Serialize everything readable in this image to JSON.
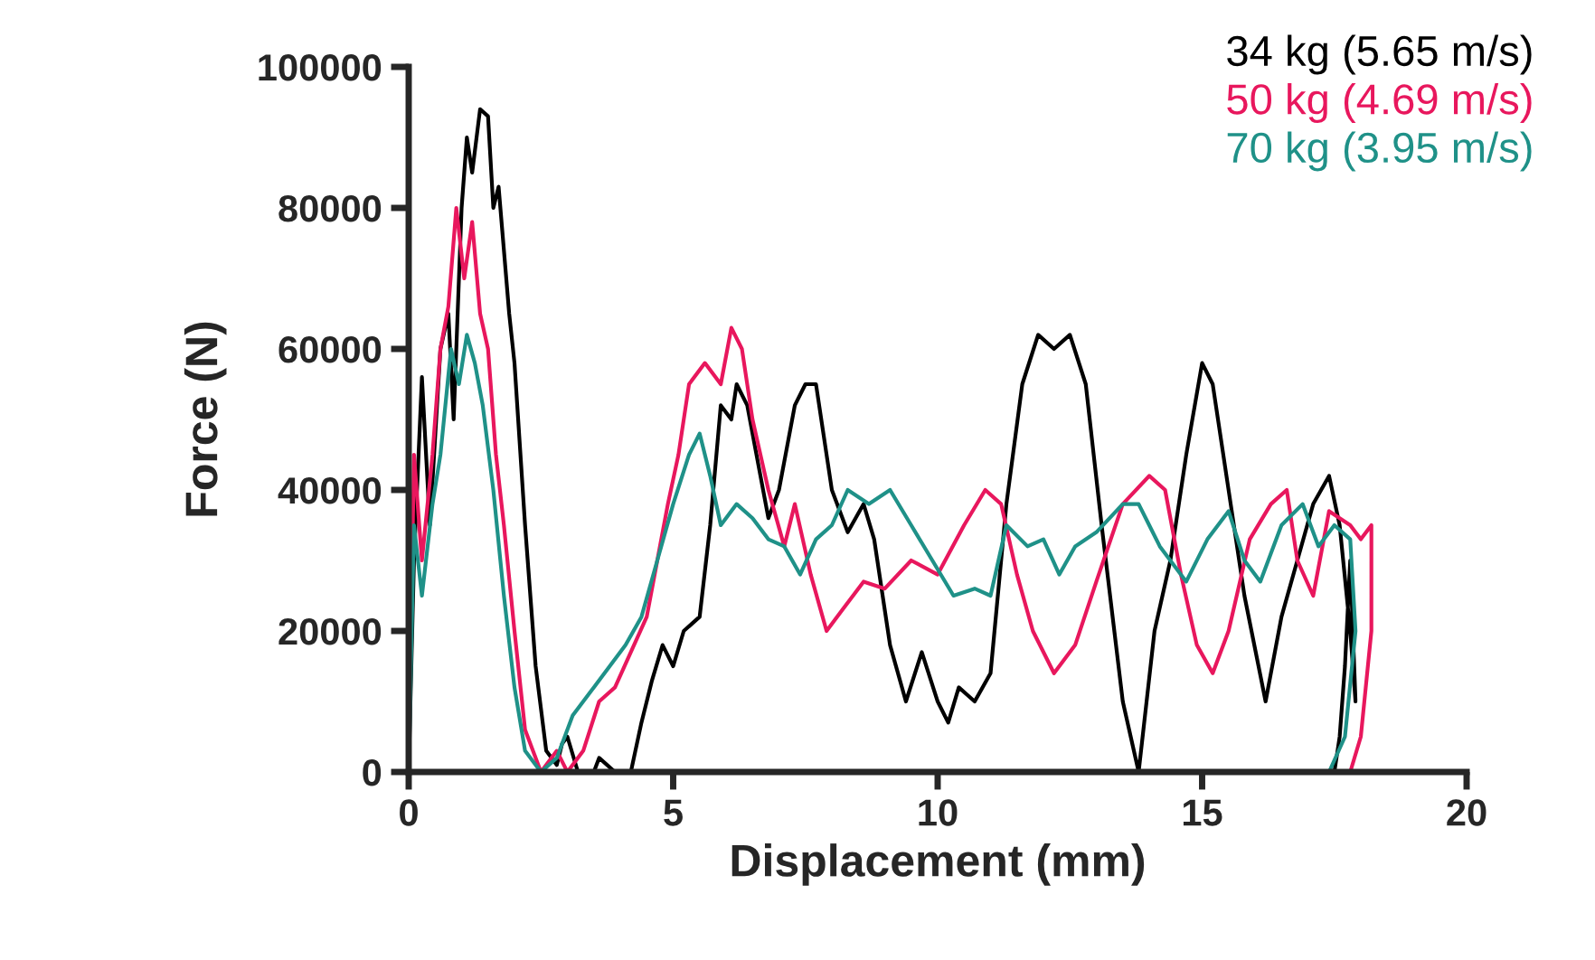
{
  "chart_data": {
    "type": "line",
    "xlabel": "Displacement (mm)",
    "ylabel": "Force (N)",
    "xlim": [
      0,
      20
    ],
    "ylim": [
      0,
      100000
    ],
    "xticks": [
      0,
      5,
      10,
      15,
      20
    ],
    "yticks": [
      0,
      20000,
      40000,
      60000,
      80000,
      100000
    ],
    "grid": false,
    "legend": "top right",
    "marker": "none",
    "line_style": "solid",
    "series": [
      {
        "name": "34 kg (5.65 m/s)",
        "color": "#000000",
        "x": [
          0,
          0.1,
          0.25,
          0.4,
          0.6,
          0.75,
          0.85,
          1.0,
          1.1,
          1.2,
          1.35,
          1.5,
          1.6,
          1.7,
          1.9,
          2.0,
          2.2,
          2.4,
          2.6,
          2.8,
          2.9,
          3.0,
          3.2,
          3.5,
          3.6,
          3.9,
          4.2,
          4.4,
          4.6,
          4.8,
          5.0,
          5.2,
          5.5,
          5.7,
          5.9,
          6.1,
          6.2,
          6.4,
          6.6,
          6.8,
          7.0,
          7.3,
          7.5,
          7.7,
          8.0,
          8.3,
          8.6,
          8.8,
          9.1,
          9.4,
          9.7,
          10.0,
          10.2,
          10.4,
          10.7,
          11.0,
          11.3,
          11.6,
          11.9,
          12.2,
          12.5,
          12.8,
          13.1,
          13.5,
          13.8,
          14.1,
          14.4,
          14.7,
          15.0,
          15.2,
          15.5,
          15.8,
          16.2,
          16.5,
          16.8,
          17.1,
          17.4,
          17.6,
          17.8,
          17.9,
          17.8,
          17.7,
          17.6,
          17.5
        ],
        "values": [
          0,
          30000,
          56000,
          35000,
          60000,
          65000,
          50000,
          80000,
          90000,
          85000,
          94000,
          93000,
          80000,
          83000,
          65000,
          58000,
          35000,
          15000,
          3000,
          1000,
          4000,
          5000,
          0,
          0,
          2000,
          0,
          0,
          7000,
          13000,
          18000,
          15000,
          20000,
          22000,
          35000,
          52000,
          50000,
          55000,
          52000,
          44000,
          36000,
          40000,
          52000,
          55000,
          55000,
          40000,
          34000,
          38000,
          33000,
          18000,
          10000,
          17000,
          10000,
          7000,
          12000,
          10000,
          14000,
          38000,
          55000,
          62000,
          60000,
          62000,
          55000,
          35000,
          10000,
          0,
          20000,
          30000,
          45000,
          58000,
          55000,
          40000,
          25000,
          10000,
          22000,
          30000,
          38000,
          42000,
          35000,
          20000,
          10000,
          30000,
          15000,
          5000,
          0
        ]
      },
      {
        "name": "50 kg (4.69 m/s)",
        "color": "#e8175d",
        "x": [
          0,
          0.1,
          0.25,
          0.45,
          0.6,
          0.75,
          0.9,
          1.05,
          1.2,
          1.35,
          1.5,
          1.65,
          1.8,
          2.0,
          2.2,
          2.5,
          2.8,
          3.0,
          3.3,
          3.6,
          3.9,
          4.2,
          4.5,
          4.7,
          4.9,
          5.1,
          5.3,
          5.6,
          5.9,
          6.1,
          6.3,
          6.5,
          6.8,
          7.1,
          7.3,
          7.6,
          7.9,
          8.2,
          8.6,
          9.0,
          9.5,
          10.0,
          10.5,
          10.9,
          11.2,
          11.5,
          11.8,
          12.2,
          12.6,
          13.0,
          13.5,
          14.0,
          14.3,
          14.6,
          14.9,
          15.2,
          15.5,
          15.9,
          16.3,
          16.6,
          16.8,
          17.1,
          17.4,
          17.8,
          18.0,
          18.2,
          18.2,
          18.0,
          17.8
        ],
        "values": [
          0,
          45000,
          30000,
          45000,
          60000,
          66000,
          80000,
          70000,
          78000,
          65000,
          60000,
          45000,
          35000,
          20000,
          6000,
          0,
          3000,
          0,
          3000,
          10000,
          12000,
          17000,
          22000,
          30000,
          38000,
          45000,
          55000,
          58000,
          55000,
          63000,
          60000,
          50000,
          40000,
          32000,
          38000,
          28000,
          20000,
          23000,
          27000,
          26000,
          30000,
          28000,
          35000,
          40000,
          38000,
          28000,
          20000,
          14000,
          18000,
          27000,
          38000,
          42000,
          40000,
          28000,
          18000,
          14000,
          20000,
          33000,
          38000,
          40000,
          30000,
          25000,
          37000,
          35000,
          33000,
          35000,
          20000,
          5000,
          0
        ]
      },
      {
        "name": "70 kg (3.95 m/s)",
        "color": "#1f9188",
        "x": [
          0,
          0.1,
          0.25,
          0.45,
          0.6,
          0.8,
          0.95,
          1.1,
          1.25,
          1.4,
          1.6,
          1.8,
          2.0,
          2.2,
          2.5,
          2.8,
          3.1,
          3.5,
          3.8,
          4.1,
          4.4,
          4.7,
          5.0,
          5.3,
          5.5,
          5.7,
          5.9,
          6.2,
          6.5,
          6.8,
          7.1,
          7.4,
          7.7,
          8.0,
          8.3,
          8.7,
          9.1,
          9.5,
          9.9,
          10.3,
          10.7,
          11.0,
          11.3,
          11.7,
          12.0,
          12.3,
          12.6,
          13.0,
          13.5,
          13.8,
          14.2,
          14.7,
          15.1,
          15.5,
          15.8,
          16.1,
          16.5,
          16.9,
          17.2,
          17.5,
          17.8,
          17.9,
          17.7,
          17.4
        ],
        "values": [
          0,
          35000,
          25000,
          38000,
          45000,
          60000,
          55000,
          62000,
          58000,
          52000,
          40000,
          25000,
          12000,
          3000,
          0,
          2000,
          8000,
          12000,
          15000,
          18000,
          22000,
          30000,
          38000,
          45000,
          48000,
          42000,
          35000,
          38000,
          36000,
          33000,
          32000,
          28000,
          33000,
          35000,
          40000,
          38000,
          40000,
          35000,
          30000,
          25000,
          26000,
          25000,
          35000,
          32000,
          33000,
          28000,
          32000,
          34000,
          38000,
          38000,
          32000,
          27000,
          33000,
          37000,
          30000,
          27000,
          35000,
          38000,
          32000,
          35000,
          33000,
          20000,
          5000,
          0
        ]
      }
    ]
  }
}
